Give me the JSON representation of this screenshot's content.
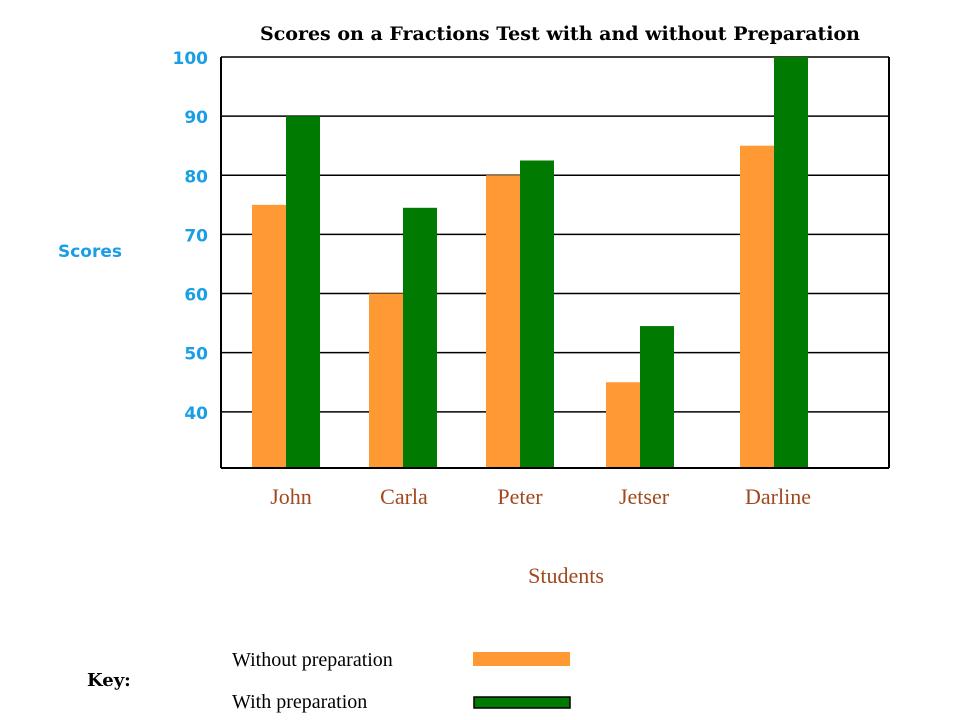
{
  "chart_data": {
    "type": "bar",
    "title": "Scores on a Fractions Test with and without Preparation",
    "xlabel": "Students",
    "ylabel": "Scores",
    "categories": [
      "John",
      "Carla",
      "Peter",
      "Jetser",
      "Darline"
    ],
    "series": [
      {
        "name": "Without preparation",
        "values": [
          75,
          60,
          80,
          45,
          85
        ],
        "color": "#ff9933"
      },
      {
        "name": "With preparation",
        "values": [
          90,
          74.5,
          82.5,
          54.5,
          100
        ],
        "color": "#007a00"
      }
    ],
    "yticks": [
      "40",
      "50",
      "60",
      "70",
      "80",
      "90",
      "100"
    ],
    "ylim": [
      30.5,
      100
    ],
    "grid": true,
    "legend_title": "Key:",
    "legend_position": "bottom-left",
    "colors": {
      "axis_text": "#1a9ee6",
      "category_text": "#a0481e",
      "gridline": "#000000"
    }
  }
}
